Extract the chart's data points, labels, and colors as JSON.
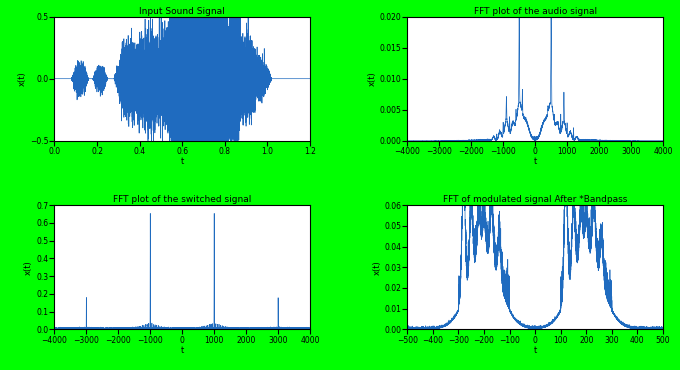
{
  "background_color": "#00ff00",
  "plot_bg_color": "#ffffff",
  "line_color": "#1f6bbf",
  "line_width": 0.5,
  "top_left": {
    "title": "Input Sound Signal",
    "xlabel": "t",
    "ylabel": "x(t)",
    "xlim": [
      0,
      1.2
    ],
    "ylim": [
      -0.5,
      0.5
    ],
    "yticks": [
      -0.5,
      0,
      0.5
    ],
    "xticks": [
      0,
      0.2,
      0.4,
      0.6,
      0.8,
      1.0,
      1.2
    ]
  },
  "top_right": {
    "title": "FFT plot of the audio signal",
    "xlabel": "t",
    "ylabel": "x(t)",
    "xlim": [
      -4000,
      4000
    ],
    "ylim": [
      0,
      0.02
    ],
    "yticks": [
      0,
      0.005,
      0.01,
      0.015,
      0.02
    ],
    "xticks": [
      -4000,
      -3000,
      -2000,
      -1000,
      0,
      1000,
      2000,
      3000,
      4000
    ]
  },
  "bottom_left": {
    "title": "FFT plot of the switched signal",
    "xlabel": "t",
    "ylabel": "x(t)",
    "xlim": [
      -4000,
      4000
    ],
    "ylim": [
      0,
      0.7
    ],
    "yticks": [
      0,
      0.1,
      0.2,
      0.3,
      0.4,
      0.5,
      0.6,
      0.7
    ],
    "xticks": [
      -4000,
      -3000,
      -2000,
      -1000,
      0,
      1000,
      2000,
      3000,
      4000
    ]
  },
  "bottom_right": {
    "title": "FFT of modulated signal After *Bandpass",
    "xlabel": "t",
    "ylabel": "x(t)",
    "xlim": [
      -500,
      500
    ],
    "ylim": [
      0,
      0.06
    ],
    "yticks": [
      0,
      0.01,
      0.02,
      0.03,
      0.04,
      0.05,
      0.06
    ],
    "xticks": [
      -500,
      -400,
      -300,
      -200,
      -100,
      0,
      100,
      200,
      300,
      400,
      500
    ]
  }
}
